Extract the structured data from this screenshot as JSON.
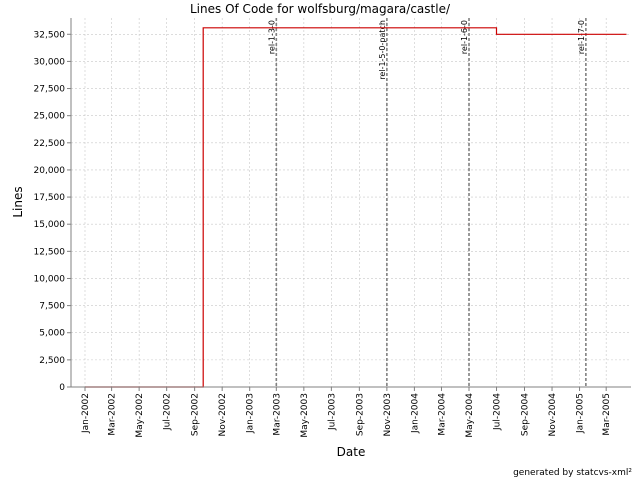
{
  "footer": "generated by statcvs-xml²",
  "colors": {
    "series": "#cc0000",
    "grid": "#c8c8c8",
    "marker": "#808080",
    "axis": "#808080"
  },
  "chart_data": {
    "type": "line",
    "title": "Lines Of Code for wolfsburg/magara/castle/",
    "xlabel": "Date",
    "ylabel": "Lines",
    "xlim": [
      "2001-12-01",
      "2005-04-25"
    ],
    "ylim": [
      0,
      34000
    ],
    "grid": true,
    "x_ticks": [
      "2002-01-01",
      "2002-03-01",
      "2002-05-01",
      "2002-07-01",
      "2002-09-01",
      "2002-11-01",
      "2003-01-01",
      "2003-03-01",
      "2003-05-01",
      "2003-07-01",
      "2003-09-01",
      "2003-11-01",
      "2004-01-01",
      "2004-03-01",
      "2004-05-01",
      "2004-07-01",
      "2004-09-01",
      "2004-11-01",
      "2005-01-01",
      "2005-03-01"
    ],
    "x_tick_labels": [
      "Jan-2002",
      "Mar-2002",
      "May-2002",
      "Jul-2002",
      "Sep-2002",
      "Nov-2002",
      "Jan-2003",
      "Mar-2003",
      "May-2003",
      "Jul-2003",
      "Sep-2003",
      "Nov-2003",
      "Jan-2004",
      "Mar-2004",
      "May-2004",
      "Jul-2004",
      "Sep-2004",
      "Nov-2004",
      "Jan-2005",
      "Mar-2005"
    ],
    "y_ticks": [
      0,
      2500,
      5000,
      7500,
      10000,
      12500,
      15000,
      17500,
      20000,
      22500,
      25000,
      27500,
      30000,
      32500
    ],
    "y_tick_labels": [
      "0",
      "2,500",
      "5,000",
      "7,500",
      "10,000",
      "12,500",
      "15,000",
      "17,500",
      "20,000",
      "22,500",
      "25,000",
      "27,500",
      "30,000",
      "32,500"
    ],
    "series": [
      {
        "step": true,
        "points": [
          {
            "x": "2002-01-01",
            "y": 0
          },
          {
            "x": "2002-09-20",
            "y": 0
          },
          {
            "x": "2002-09-20",
            "y": 33100
          },
          {
            "x": "2004-07-01",
            "y": 33100
          },
          {
            "x": "2004-07-01",
            "y": 32500
          },
          {
            "x": "2005-04-15",
            "y": 32500
          }
        ]
      }
    ],
    "markers": [
      {
        "x": "2003-03-01",
        "label": "rel-1-3-0"
      },
      {
        "x": "2003-11-01",
        "label": "rel-1-5-0-patch"
      },
      {
        "x": "2004-05-01",
        "label": "rel-1-6-0"
      },
      {
        "x": "2005-01-15",
        "label": "rel-1-7-0"
      }
    ]
  }
}
